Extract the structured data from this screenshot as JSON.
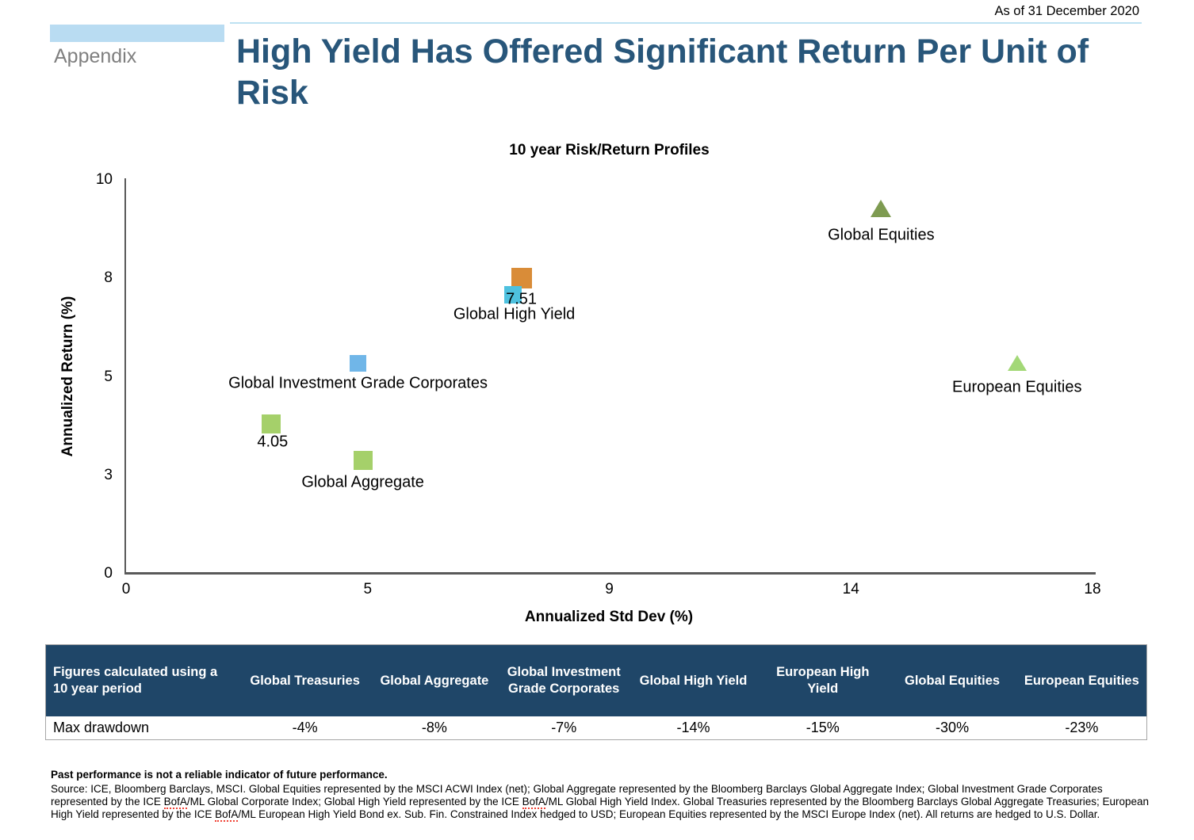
{
  "header": {
    "as_of": "As of 31 December 2020",
    "section_label": "Appendix",
    "title": "High Yield Has Offered Significant Return Per Unit of Risk"
  },
  "chart_data": {
    "type": "scatter",
    "title": "10 year Risk/Return Profiles",
    "xlabel": "Annualized Std Dev (%)",
    "ylabel": "Annualized Return (%)",
    "x_ticks": [
      0,
      5,
      9,
      14,
      18
    ],
    "y_ticks": [
      0,
      3,
      5,
      8,
      10
    ],
    "grid": false,
    "points": [
      {
        "label": "Global Equities",
        "x": 14.5,
        "y": 9.4,
        "marker": "triangle",
        "color": "#7E9B51",
        "size": 27,
        "label_dy": 33
      },
      {
        "label": "",
        "x": 7.55,
        "y": 8.0,
        "marker": "square",
        "color": "#D98C38",
        "size": 26
      },
      {
        "label": "Global High Yield",
        "x": 7.4,
        "y": 7.51,
        "marker": "square",
        "color": "#4EC1DF",
        "size": 22,
        "label_dx": 2,
        "label_dy": 25,
        "value_label": "7.51",
        "value_dx": 11,
        "value_dy": 6
      },
      {
        "label": "Global Investment Grade Corporates",
        "x": 4.8,
        "y": 5.4,
        "marker": "square",
        "color": "#70B6E8",
        "size": 21,
        "label_dy": 25
      },
      {
        "label": "",
        "x": 3.0,
        "y": 4.05,
        "marker": "square",
        "color": "#A5D06A",
        "size": 24,
        "value_label": "4.05",
        "value_dx": 2,
        "value_dy": 23
      },
      {
        "label": "Global Aggregate",
        "x": 4.9,
        "y": 3.3,
        "marker": "square",
        "color": "#A5D06A",
        "size": 24,
        "label_dy": 28
      },
      {
        "label": "European Equities",
        "x": 16.75,
        "y": 5.4,
        "marker": "triangle",
        "color": "#A3D877",
        "size": 24,
        "label_dy": 30
      }
    ]
  },
  "table": {
    "header_row": [
      "Figures calculated using a 10 year period",
      "Global Treasuries",
      "Global Aggregate",
      "Global Investment Grade Corporates",
      "Global High Yield",
      "European High Yield",
      "Global Equities",
      "European Equities"
    ],
    "rows": [
      [
        "Max drawdown",
        "-4%",
        "-8%",
        "-7%",
        "-14%",
        "-15%",
        "-30%",
        "-23%"
      ]
    ]
  },
  "footnote": {
    "bold_line": "Past performance is not a reliable indicator of future performance.",
    "source_segments": [
      {
        "text": "Source: ICE, Bloomberg Barclays, MSCI. Global Equities represented by the MSCI ACWI Index (net); Global Aggregate represented by the Bloomberg Barclays Global Aggregate Index; Global Investment Grade Corporates represented by the ICE ",
        "squiggle": false
      },
      {
        "text": "BofA",
        "squiggle": true
      },
      {
        "text": "/ML Global Corporate Index; Global High Yield represented by the ICE ",
        "squiggle": false
      },
      {
        "text": "BofA",
        "squiggle": true
      },
      {
        "text": "/ML Global High Yield Index. Global Treasuries represented by the Bloomberg Barclays Global Aggregate Treasuries; European High Yield represented by the ICE ",
        "squiggle": false
      },
      {
        "text": "BofA",
        "squiggle": true
      },
      {
        "text": "/ML European High Yield Bond ex. Sub. Fin. Constrained Index hedged to USD; European Equities represented by the MSCI Europe Index (net). All returns are hedged to U.S. Dollar.",
        "squiggle": false
      }
    ]
  },
  "colors": {
    "title_blue": "#28567A",
    "tab_bar_blue": "#B9DCF2",
    "header_rule_blue": "#BDE1F2",
    "section_label_gray": "#7F7F7F",
    "axis_gray": "#595959",
    "table_header_bg": "#1F4668",
    "squiggle_red": "#F04336"
  }
}
